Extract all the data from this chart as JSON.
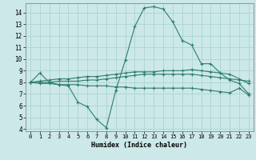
{
  "xlabel": "Humidex (Indice chaleur)",
  "bg_color": "#cce8e8",
  "grid_color": "#aad4d4",
  "line_color": "#2e7d6e",
  "xlim": [
    -0.5,
    23.5
  ],
  "ylim": [
    3.8,
    14.8
  ],
  "yticks": [
    4,
    5,
    6,
    7,
    8,
    9,
    10,
    11,
    12,
    13,
    14
  ],
  "xticks": [
    0,
    1,
    2,
    3,
    4,
    5,
    6,
    7,
    8,
    9,
    10,
    11,
    12,
    13,
    14,
    15,
    16,
    17,
    18,
    19,
    20,
    21,
    22,
    23
  ],
  "line1_x": [
    0,
    1,
    2,
    3,
    4,
    5,
    6,
    7,
    8,
    9,
    10,
    11,
    12,
    13,
    14,
    15,
    16,
    17,
    18,
    19,
    20,
    21,
    22,
    23
  ],
  "line1_y": [
    8.0,
    8.8,
    8.0,
    7.8,
    7.7,
    6.3,
    5.9,
    4.8,
    4.1,
    7.3,
    9.9,
    12.8,
    14.4,
    14.5,
    14.3,
    13.2,
    11.6,
    11.2,
    9.6,
    9.6,
    8.8,
    8.2,
    7.9,
    7.0
  ],
  "line2_x": [
    0,
    1,
    2,
    3,
    4,
    5,
    6,
    7,
    8,
    9,
    10,
    11,
    12,
    13,
    14,
    15,
    16,
    17,
    18,
    19,
    20,
    21,
    22,
    23
  ],
  "line2_y": [
    8.0,
    8.1,
    8.2,
    8.3,
    8.3,
    8.4,
    8.5,
    8.5,
    8.6,
    8.7,
    8.8,
    8.9,
    8.9,
    8.9,
    9.0,
    9.0,
    9.0,
    9.1,
    9.0,
    8.9,
    8.8,
    8.7,
    8.3,
    7.9
  ],
  "line3_x": [
    0,
    1,
    2,
    3,
    4,
    5,
    6,
    7,
    8,
    9,
    10,
    11,
    12,
    13,
    14,
    15,
    16,
    17,
    18,
    19,
    20,
    21,
    22,
    23
  ],
  "line3_y": [
    8.0,
    7.9,
    7.9,
    7.8,
    7.8,
    7.8,
    7.7,
    7.7,
    7.7,
    7.6,
    7.6,
    7.5,
    7.5,
    7.5,
    7.5,
    7.5,
    7.5,
    7.5,
    7.4,
    7.3,
    7.2,
    7.1,
    7.5,
    6.9
  ],
  "line4_x": [
    0,
    1,
    2,
    3,
    4,
    5,
    6,
    7,
    8,
    9,
    10,
    11,
    12,
    13,
    14,
    15,
    16,
    17,
    18,
    19,
    20,
    21,
    22,
    23
  ],
  "line4_y": [
    8.0,
    8.0,
    8.0,
    8.1,
    8.1,
    8.1,
    8.2,
    8.2,
    8.3,
    8.4,
    8.5,
    8.6,
    8.7,
    8.7,
    8.7,
    8.7,
    8.7,
    8.7,
    8.6,
    8.5,
    8.4,
    8.3,
    8.2,
    8.1
  ]
}
